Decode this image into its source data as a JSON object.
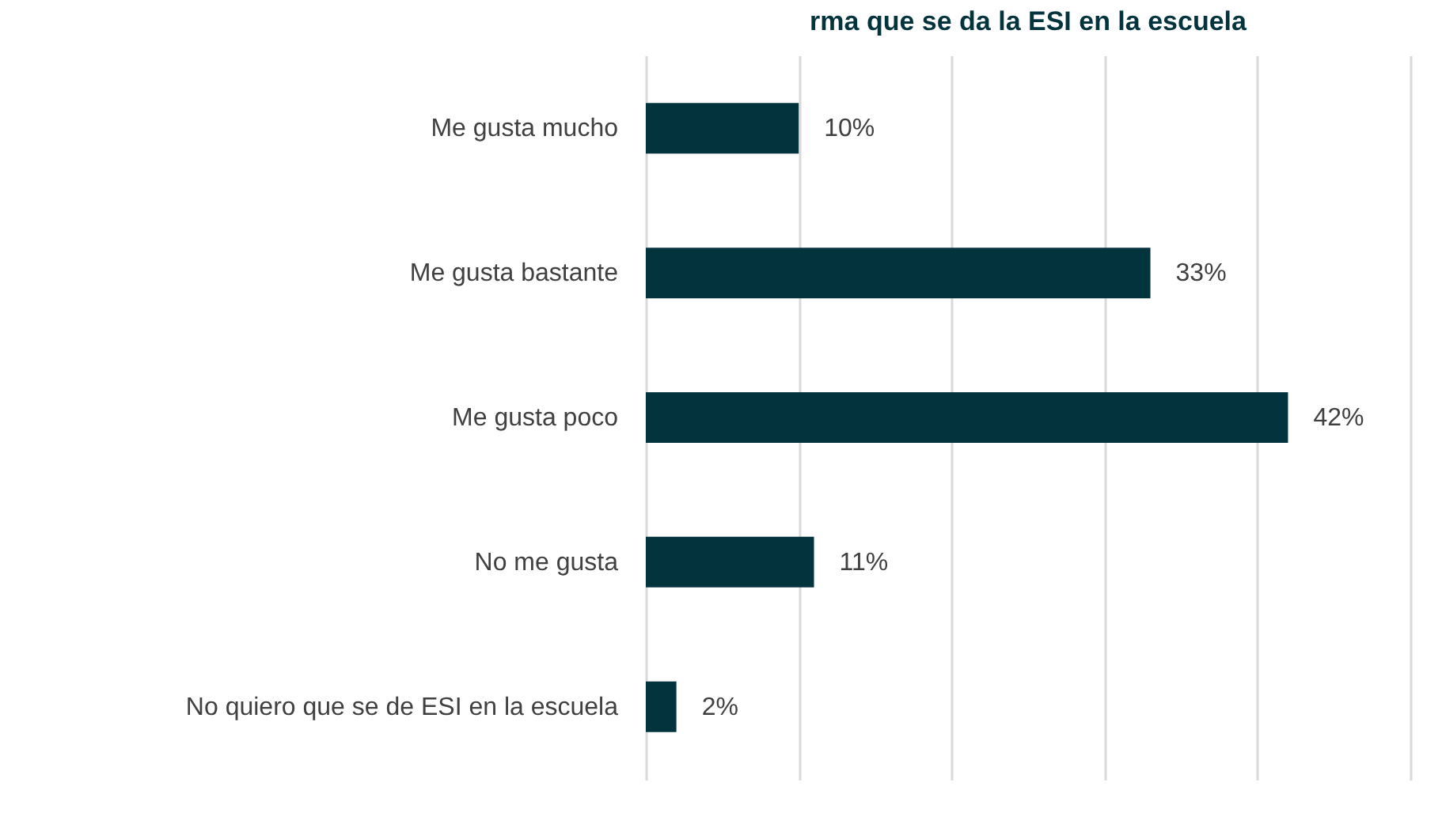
{
  "chart_data": {
    "type": "bar",
    "orientation": "horizontal",
    "title": "rma que se da la ESI en la escuela",
    "categories": [
      "Me gusta mucho",
      "Me gusta bastante",
      "Me gusta poco",
      "No me gusta",
      "No quiero que se de ESI en la escuela"
    ],
    "values": [
      10,
      33,
      42,
      11,
      2
    ],
    "value_labels": [
      "10%",
      "33%",
      "42%",
      "11%",
      "2%"
    ],
    "color": "#03343e",
    "xlim": [
      0,
      50
    ],
    "xticks": [
      {
        "value": 0,
        "label": null
      },
      {
        "value": 10,
        "label": null
      },
      {
        "value": 20,
        "label": null
      },
      {
        "value": 30,
        "label": null
      },
      {
        "value": 40,
        "label": null
      },
      {
        "value": 50,
        "label": null
      }
    ],
    "grid": "x",
    "tick_labels": "y"
  }
}
